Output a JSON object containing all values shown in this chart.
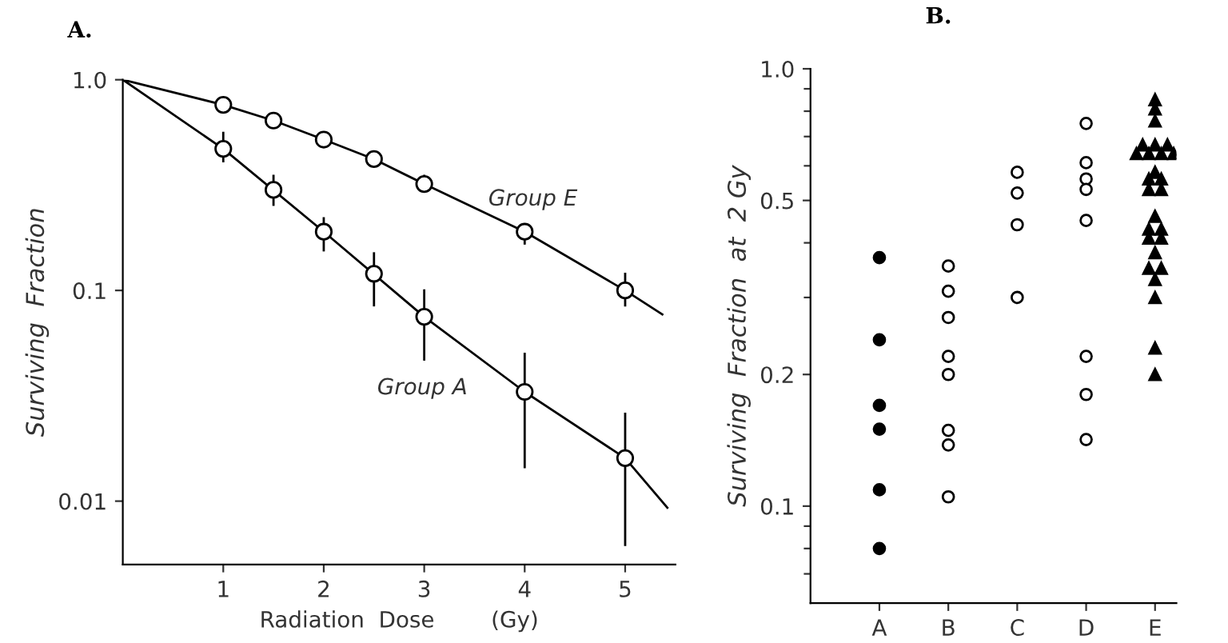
{
  "chart_data": [
    {
      "type": "line",
      "title": "A.",
      "xlabel": "Radiation  Dose        (Gy)",
      "ylabel": "Surviving  Fraction",
      "log": "y",
      "xlim": [
        0,
        5.5
      ],
      "xticks": [
        1,
        2,
        3,
        4,
        5
      ],
      "ylim": [
        0.005,
        1.0
      ],
      "yticks": [
        {
          "value": 1.0,
          "label": "1.0"
        },
        {
          "value": 0.1,
          "label": "0.1"
        },
        {
          "value": 0.01,
          "label": "0.01"
        }
      ],
      "grid": false,
      "legend": false,
      "series": [
        {
          "name": "Group E",
          "color": "#000000",
          "marker": "none",
          "x": [
            0,
            1,
            1.5,
            2,
            2.5,
            3,
            4,
            5,
            5.37
          ],
          "values": [
            1.0,
            0.76,
            0.64,
            0.52,
            0.42,
            0.32,
            0.19,
            0.1,
            0.077
          ]
        },
        {
          "name": "Group A",
          "color": "#000000",
          "marker": "none",
          "x": [
            0,
            1,
            2,
            3,
            4,
            5,
            5.42
          ],
          "values": [
            1.0,
            0.47,
            0.19,
            0.075,
            0.033,
            0.016,
            0.0093
          ]
        },
        {
          "type": "scatter",
          "color": "#ffffff",
          "marker": "circle",
          "x": [
            1,
            1.5,
            2,
            2.5,
            3,
            4,
            5
          ],
          "values": [
            0.76,
            0.64,
            0.52,
            0.42,
            0.32,
            0.19,
            0.1
          ],
          "errors": [
            null,
            null,
            null,
            null,
            [
              0.3,
              0.35
            ],
            [
              0.167,
              0.2
            ],
            [
              0.085,
              0.12
            ]
          ]
        },
        {
          "type": "scatter",
          "color": "#ffffff",
          "marker": "circle",
          "x": [
            1,
            1.5,
            2,
            2.5,
            3,
            4,
            5
          ],
          "values": [
            0.47,
            0.3,
            0.19,
            0.12,
            0.075,
            0.033,
            0.016
          ],
          "errors": [
            [
              0.41,
              0.56
            ],
            [
              0.255,
              0.35
            ],
            [
              0.155,
              0.22
            ],
            [
              0.085,
              0.15
            ],
            [
              0.047,
              0.1
            ],
            [
              0.0145,
              0.05
            ],
            [
              0.0062,
              0.026
            ]
          ]
        }
      ]
    },
    {
      "type": "scatter",
      "title": "B.",
      "ylabel": "Surviving  Fraction  at  2 Gy",
      "log": "y",
      "categories": [
        "A",
        "B",
        "C",
        "D",
        "E"
      ],
      "ylim": [
        0.06,
        1.0
      ],
      "yticks": [
        {
          "value": 1.0,
          "label": "1.0"
        },
        {
          "value": 0.9,
          "label": null
        },
        {
          "value": 0.8,
          "label": null
        },
        {
          "value": 0.7,
          "label": null
        },
        {
          "value": 0.6,
          "label": null
        },
        {
          "value": 0.5,
          "label": "0.5"
        },
        {
          "value": 0.4,
          "label": null
        },
        {
          "value": 0.3,
          "label": null
        },
        {
          "value": 0.2,
          "label": "0.2"
        },
        {
          "value": 0.1,
          "label": "0.1"
        },
        {
          "value": 0.09,
          "label": null
        },
        {
          "value": 0.08,
          "label": null
        },
        {
          "value": 0.07,
          "label": null
        }
      ],
      "grid": false,
      "legend": false,
      "series": [
        {
          "color": "#000000",
          "marker": "circle",
          "x": [
            "A",
            "A",
            "A",
            "A",
            "A",
            "A"
          ],
          "values": [
            0.37,
            0.24,
            0.17,
            0.15,
            0.109,
            0.08
          ]
        },
        {
          "color": "#ffffff",
          "marker": "circle",
          "x": [
            "B",
            "B",
            "B",
            "B",
            "B",
            "B",
            "B",
            "B"
          ],
          "values": [
            0.354,
            0.31,
            0.27,
            0.22,
            0.2,
            0.149,
            0.138,
            0.105
          ]
        },
        {
          "color": "#ffffff",
          "marker": "circle",
          "x": [
            "C",
            "C",
            "C",
            "C"
          ],
          "values": [
            0.58,
            0.52,
            0.44,
            0.3
          ]
        },
        {
          "color": "#ffffff",
          "marker": "circle",
          "x": [
            "D",
            "D",
            "D",
            "D",
            "D",
            "D",
            "D",
            "D"
          ],
          "values": [
            0.75,
            0.61,
            0.56,
            0.53,
            0.45,
            0.22,
            0.18,
            0.142
          ]
        },
        {
          "color": "#000000",
          "marker": "triangle",
          "x": [
            "E",
            "E",
            "E",
            "E",
            "E",
            "E",
            "E",
            "E",
            "E",
            "E",
            "E",
            "E",
            "E",
            "E",
            "E",
            "E",
            "E",
            "E",
            "E",
            "E",
            "E",
            "E",
            "E",
            "E",
            "E",
            "E",
            "E"
          ],
          "values": [
            0.85,
            0.81,
            0.76,
            0.67,
            0.67,
            0.67,
            0.64,
            0.64,
            0.64,
            0.64,
            0.58,
            0.56,
            0.56,
            0.53,
            0.53,
            0.46,
            0.43,
            0.43,
            0.41,
            0.41,
            0.38,
            0.35,
            0.35,
            0.33,
            0.3,
            0.23,
            0.2
          ]
        }
      ]
    }
  ]
}
